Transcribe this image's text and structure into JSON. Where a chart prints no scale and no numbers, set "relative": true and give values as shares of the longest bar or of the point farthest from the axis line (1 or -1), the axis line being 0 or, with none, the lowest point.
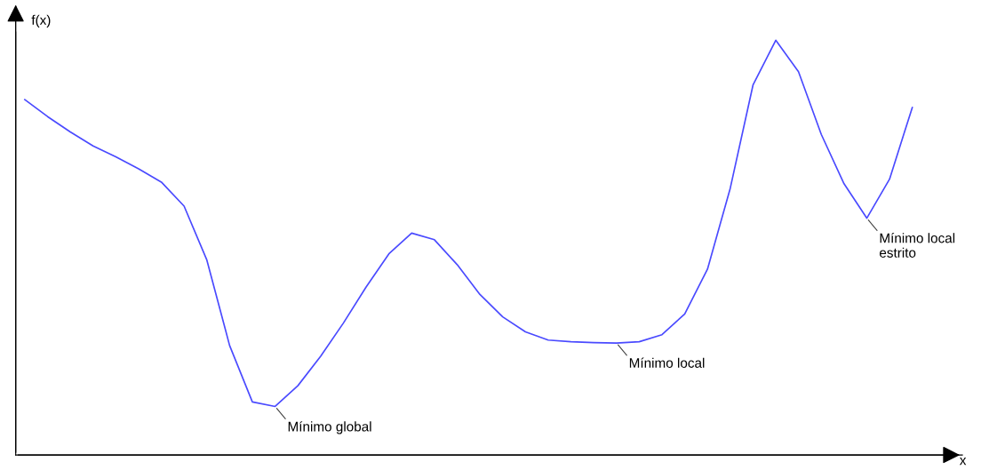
{
  "chart_data": {
    "type": "line",
    "relative": true,
    "xlabel": "x",
    "ylabel": "f(x)",
    "categories": [
      null,
      null,
      null,
      null,
      null,
      null,
      null,
      null,
      null,
      null,
      null,
      null,
      null,
      null,
      null,
      null,
      null,
      null,
      null,
      null,
      null,
      null,
      null,
      null,
      null,
      null,
      null,
      null,
      null,
      null,
      null,
      null,
      null,
      null,
      null,
      null,
      null,
      null,
      null,
      null
    ],
    "series": [
      {
        "color": "#4a4aff",
        "values": [
          0.857,
          0.816,
          0.779,
          0.745,
          0.719,
          0.69,
          0.658,
          0.6,
          0.47,
          0.264,
          0.128,
          0.117,
          0.167,
          0.238,
          0.318,
          0.405,
          0.485,
          0.535,
          0.519,
          0.459,
          0.387,
          0.333,
          0.297,
          0.277,
          0.273,
          0.271,
          0.27,
          0.273,
          0.29,
          0.34,
          0.448,
          0.643,
          0.892,
          1.0,
          0.924,
          0.773,
          0.654,
          0.571,
          0.665,
          0.838
        ]
      }
    ],
    "annotations": [
      "Mínimo global",
      "Mínimo local",
      "Mínimo local\nestrito"
    ],
    "marker": "none",
    "line_style": "solid"
  }
}
